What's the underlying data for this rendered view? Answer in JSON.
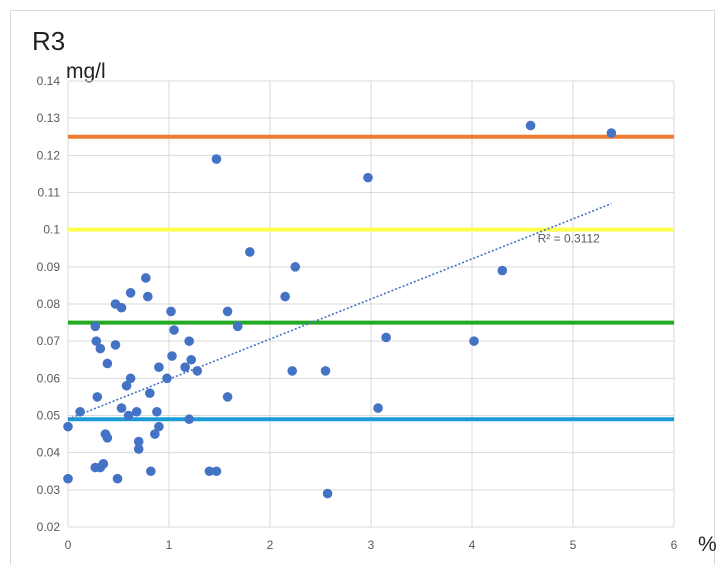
{
  "chart_data": {
    "type": "scatter",
    "title": "R3",
    "ylabel": "mg/l",
    "xlabel": "%",
    "xlim": [
      0,
      6
    ],
    "ylim": [
      0.02,
      0.14
    ],
    "x_ticks": [
      "0",
      "1",
      "2",
      "3",
      "4",
      "5",
      "6"
    ],
    "y_ticks": [
      "0.02",
      "0.03",
      "0.04",
      "0.05",
      "0.06",
      "0.07",
      "0.08",
      "0.09",
      "0.1",
      "0.11",
      "0.12",
      "0.13",
      "0.14"
    ],
    "grid": true,
    "points_color": "#4472c4",
    "points": [
      [
        0.0,
        0.047
      ],
      [
        0.0,
        0.033
      ],
      [
        0.12,
        0.051
      ],
      [
        0.27,
        0.074
      ],
      [
        0.28,
        0.07
      ],
      [
        0.32,
        0.068
      ],
      [
        0.29,
        0.055
      ],
      [
        0.27,
        0.036
      ],
      [
        0.32,
        0.036
      ],
      [
        0.35,
        0.037
      ],
      [
        0.37,
        0.045
      ],
      [
        0.39,
        0.044
      ],
      [
        0.39,
        0.064
      ],
      [
        0.47,
        0.08
      ],
      [
        0.53,
        0.079
      ],
      [
        0.47,
        0.069
      ],
      [
        0.62,
        0.083
      ],
      [
        0.58,
        0.058
      ],
      [
        0.62,
        0.06
      ],
      [
        0.53,
        0.052
      ],
      [
        0.6,
        0.05
      ],
      [
        0.68,
        0.051
      ],
      [
        0.7,
        0.043
      ],
      [
        0.7,
        0.041
      ],
      [
        0.49,
        0.033
      ],
      [
        0.77,
        0.087
      ],
      [
        0.79,
        0.082
      ],
      [
        0.81,
        0.056
      ],
      [
        0.82,
        0.035
      ],
      [
        0.86,
        0.045
      ],
      [
        0.88,
        0.051
      ],
      [
        0.9,
        0.063
      ],
      [
        0.9,
        0.047
      ],
      [
        0.98,
        0.06
      ],
      [
        1.02,
        0.078
      ],
      [
        1.05,
        0.073
      ],
      [
        1.03,
        0.066
      ],
      [
        1.16,
        0.063
      ],
      [
        1.2,
        0.07
      ],
      [
        1.22,
        0.065
      ],
      [
        1.28,
        0.062
      ],
      [
        1.2,
        0.049
      ],
      [
        1.4,
        0.035
      ],
      [
        1.47,
        0.035
      ],
      [
        1.47,
        0.119
      ],
      [
        1.58,
        0.078
      ],
      [
        1.58,
        0.055
      ],
      [
        1.68,
        0.074
      ],
      [
        1.8,
        0.094
      ],
      [
        2.15,
        0.082
      ],
      [
        2.22,
        0.062
      ],
      [
        2.25,
        0.09
      ],
      [
        2.55,
        0.062
      ],
      [
        2.57,
        0.029
      ],
      [
        2.97,
        0.114
      ],
      [
        3.07,
        0.052
      ],
      [
        3.15,
        0.071
      ],
      [
        4.02,
        0.07
      ],
      [
        4.3,
        0.089
      ],
      [
        4.58,
        0.128
      ],
      [
        5.38,
        0.126
      ]
    ],
    "reference_lines": [
      {
        "y": 0.125,
        "color": "#ed7d31"
      },
      {
        "y": 0.1,
        "color": "#ffff4d"
      },
      {
        "y": 0.075,
        "color": "#22aa22"
      },
      {
        "y": 0.049,
        "color": "#1a9ad6"
      }
    ],
    "trendline": {
      "type": "linear",
      "x": [
        0,
        5.38
      ],
      "y": [
        0.049,
        0.107
      ],
      "color": "#4472c4",
      "style": "dotted",
      "label": "R² = 0.3112"
    }
  }
}
